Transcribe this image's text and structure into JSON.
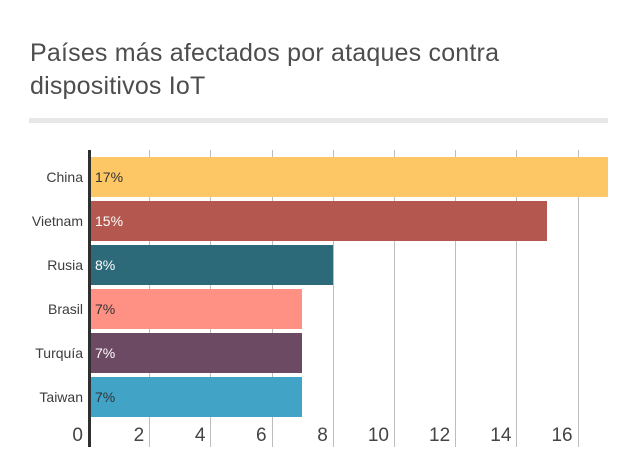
{
  "chart_data": {
    "type": "bar",
    "orientation": "horizontal",
    "title": "Países más afectados por ataques contra dispositivos IoT",
    "categories": [
      "China",
      "Vietnam",
      "Rusia",
      "Brasil",
      "Turquía",
      "Taiwan"
    ],
    "values": [
      17,
      15,
      8,
      7,
      7,
      7
    ],
    "value_labels": [
      "17%",
      "15%",
      "8%",
      "7%",
      "7%",
      "7%"
    ],
    "bar_colors": [
      "#FCC764",
      "#B4584F",
      "#2D6A79",
      "#FE9084",
      "#6D4A64",
      "#41A3C6"
    ],
    "value_label_colors": [
      "#333333",
      "#ffffff",
      "#ffffff",
      "#333333",
      "#ffffff",
      "#333333"
    ],
    "xticks": [
      0,
      2,
      4,
      6,
      8,
      10,
      12,
      14,
      16
    ],
    "xlim": [
      0,
      17
    ],
    "xlabel": "",
    "ylabel": "",
    "grid": true,
    "legend": "none"
  },
  "colors": {
    "title_text": "#4d4d4f",
    "divider": "#e7e7e7",
    "axis_line": "#2f2f2f",
    "gridline": "#bdbdbd",
    "category_text": "#3c3c3c",
    "tick_text": "#444444",
    "background": "#ffffff"
  }
}
